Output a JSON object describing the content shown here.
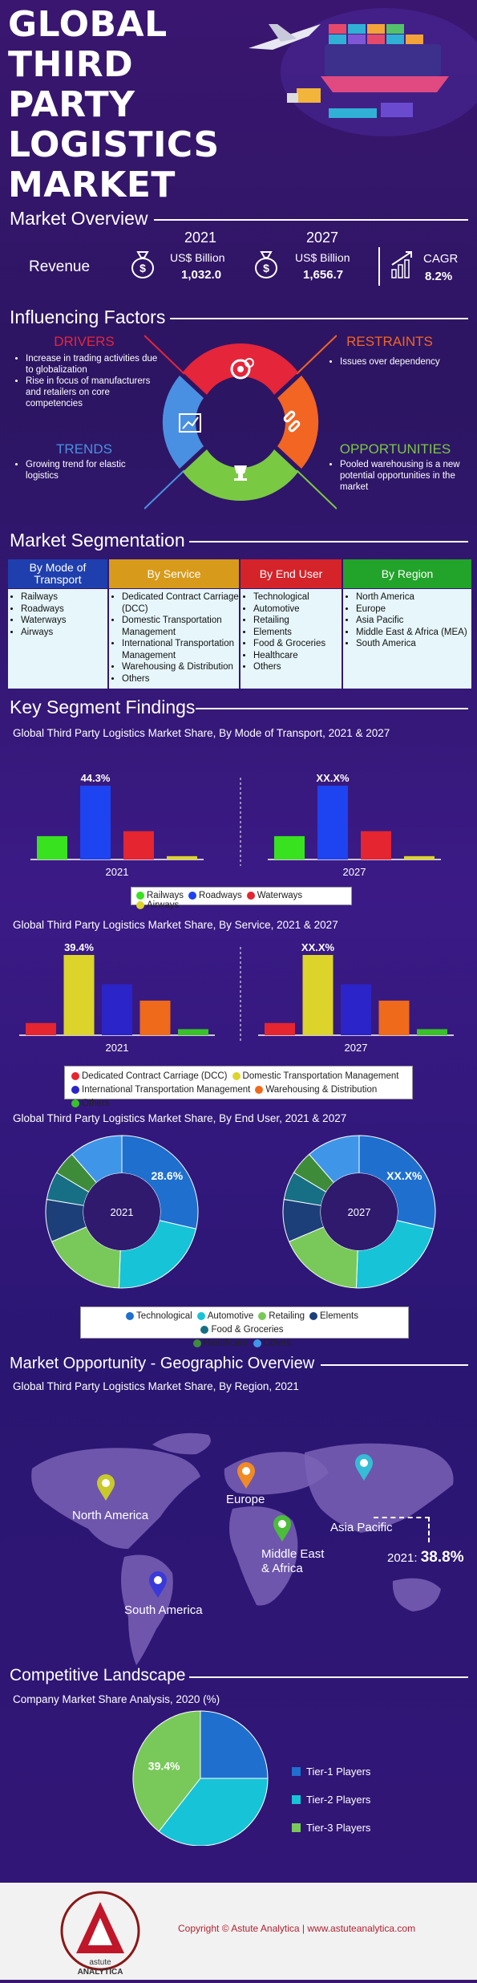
{
  "header": {
    "title_lines": [
      "GLOBAL",
      "THIRD PARTY",
      "LOGISTICS",
      "MARKET"
    ]
  },
  "overview": {
    "title": "Market Overview",
    "label": "Revenue",
    "y1": "2021",
    "y2": "2027",
    "unit": "US$ Billion",
    "v1": "1,032.0",
    "v2": "1,656.7",
    "cagr_label": "CAGR",
    "cagr_value": "8.2%"
  },
  "factors": {
    "title": "Influencing Factors",
    "drivers": {
      "heading": "DRIVERS",
      "items": [
        "Increase in trading activities due to globalization",
        "Rise in focus of manufacturers and retailers on core competencies"
      ]
    },
    "restraints": {
      "heading": "RESTRAINTS",
      "items": [
        "Issues over dependency"
      ]
    },
    "trends": {
      "heading": "TRENDS",
      "items": [
        "Growing trend for elastic logistics"
      ]
    },
    "opportunities": {
      "heading": "OPPORTUNITIES",
      "items": [
        "Pooled warehousing is a new potential opportunities in the market"
      ]
    },
    "colors": {
      "drivers": "#e5253a",
      "restraints": "#f26522",
      "trends": "#4a90e2",
      "opportunities": "#7ac943"
    }
  },
  "segmentation": {
    "title": "Market Segmentation",
    "columns": [
      {
        "head": "By Mode of Transport",
        "color": "#1f3fae",
        "items": [
          "Railways",
          "Roadways",
          "Waterways",
          "Airways"
        ]
      },
      {
        "head": "By Service",
        "color": "#d89a1a",
        "items": [
          "Dedicated Contract Carriage (DCC)",
          "Domestic Transportation Management",
          "International Transportation Management",
          "Warehousing & Distribution",
          "Others"
        ]
      },
      {
        "head": "By End User",
        "color": "#d5232a",
        "items": [
          "Technological",
          "Automotive",
          "Retailing",
          "Elements",
          "Food & Groceries",
          "Healthcare",
          "Others"
        ]
      },
      {
        "head": "By Region",
        "color": "#22a32a",
        "items": [
          "North America",
          "Europe",
          "Asia Pacific",
          "Middle East & Africa (MEA)",
          "South America"
        ]
      }
    ]
  },
  "findings": {
    "title": "Key Segment Findings"
  },
  "chart_data": [
    {
      "type": "bar",
      "title": "Global Third Party Logistics Market Share, By Mode of Transport, 2021 & 2027",
      "categories": [
        "Railways",
        "Roadways",
        "Waterways",
        "Airways"
      ],
      "colors": [
        "#39e21f",
        "#1e43f0",
        "#e5252f",
        "#dcd42a"
      ],
      "groups": [
        {
          "label": "2021",
          "values": [
            14,
            44.3,
            17,
            2
          ],
          "annotation": "44.3%"
        },
        {
          "label": "2027",
          "values": [
            14,
            44.3,
            17,
            2
          ],
          "annotation": "XX.X%"
        }
      ]
    },
    {
      "type": "bar",
      "title": "Global Third Party Logistics Market Share, By Service, 2021 & 2027",
      "categories": [
        "Dedicated Contract Carriage (DCC)",
        "Domestic Transportation Management",
        "International Transportation Management",
        "Warehousing & Distribution",
        "Others"
      ],
      "colors": [
        "#e5252f",
        "#dcd42a",
        "#2a24c9",
        "#ef6a1a",
        "#39c12a"
      ],
      "groups": [
        {
          "label": "2021",
          "values": [
            6,
            39.4,
            25,
            17,
            3
          ],
          "annotation": "39.4%"
        },
        {
          "label": "2027",
          "values": [
            6,
            39.4,
            25,
            17,
            3
          ],
          "annotation": "XX.X%"
        }
      ]
    },
    {
      "type": "pie",
      "title": "Global Third Party Logistics Market Share, By End User, 2021 & 2027",
      "categories": [
        "Technological",
        "Automotive",
        "Retailing",
        "Elements",
        "Food & Groceries",
        "Healthcare",
        "Others"
      ],
      "colors": [
        "#1f6fcf",
        "#17c3d6",
        "#79c95a",
        "#1c3f7a",
        "#176f86",
        "#3e8c3a",
        "#3f96e8"
      ],
      "groups": [
        {
          "label": "2021",
          "values": [
            28.6,
            22,
            18,
            9,
            6,
            5,
            11.4
          ],
          "annotation": "28.6%"
        },
        {
          "label": "2027",
          "values": [
            28.6,
            22,
            18,
            9,
            6,
            5,
            11.4
          ],
          "annotation": "XX.X%"
        }
      ]
    },
    {
      "type": "pie",
      "title": "Company Market Share Analysis, 2020 (%)",
      "categories": [
        "Tier-1 Players",
        "Tier-2 Players",
        "Tier-3 Players"
      ],
      "colors": [
        "#1f6fcf",
        "#17c3d6",
        "#79c95a"
      ],
      "values": [
        25,
        35.6,
        39.4
      ],
      "annotation": "39.4%"
    }
  ],
  "geo": {
    "title": "Market Opportunity - Geographic Overview",
    "subtitle": "Global Third Party Logistics Market Share, By Region, 2021",
    "regions": [
      {
        "name": "North America",
        "pin": "#c9c92a"
      },
      {
        "name": "Europe",
        "pin": "#f08a24"
      },
      {
        "name": "Asia Pacific",
        "pin": "#35bcd6"
      },
      {
        "name": "Middle East\n& Africa",
        "pin": "#4bbd3a"
      },
      {
        "name": "South America",
        "pin": "#3a3ad8"
      }
    ],
    "callout_year": "2021:",
    "callout_value": "38.8%"
  },
  "competitive": {
    "title": "Competitive Landscape",
    "subtitle": "Company Market Share Analysis, 2020 (%)"
  },
  "footer": {
    "copyright": "Copyright © Astute Analytica  |  www.astuteanalytica.com",
    "logo_ring": "Powered by Data | Guided by Intelligence",
    "logo_name1": "astute",
    "logo_name2": "ANALYTICA"
  }
}
